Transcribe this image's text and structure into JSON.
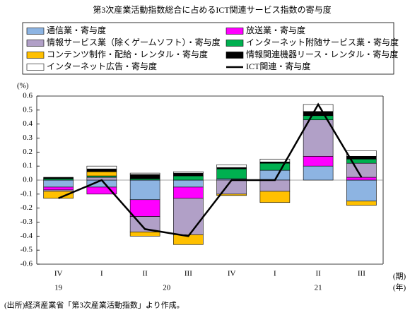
{
  "chart_data": {
    "type": "stacked-bar-line",
    "title": "第3次産業活動指数総合に占めるICT関連サービス指数の寄与度",
    "y_label": "(%)",
    "x_label": "(期)",
    "x_group_label": "(年)",
    "note": "(出所)経済産業省「第3次産業活動指数」より作成。",
    "categories": [
      "IV",
      "I",
      "II",
      "III",
      "IV",
      "I",
      "II",
      "III"
    ],
    "x_groups": [
      {
        "label": "19",
        "start": 0,
        "end": 0
      },
      {
        "label": "20",
        "start": 1,
        "end": 4
      },
      {
        "label": "21",
        "start": 5,
        "end": 7
      }
    ],
    "ylim": [
      -0.6,
      0.6
    ],
    "yticks": [
      0.6,
      0.5,
      0.4,
      0.3,
      0.2,
      0.1,
      {
        "value": 0,
        "label": "0.0"
      },
      -0.1,
      -0.2,
      -0.3,
      -0.4,
      -0.5,
      -0.6
    ],
    "series": [
      {
        "name": "通信業・寄与度",
        "color": "#8db4e2",
        "values": [
          -0.05,
          -0.05,
          -0.14,
          -0.05,
          0.01,
          0.07,
          0.1,
          -0.15
        ]
      },
      {
        "name": "放送業・寄与度",
        "color": "#ff00ff",
        "values": [
          -0.02,
          -0.05,
          -0.12,
          -0.08,
          0,
          0,
          0.07,
          0.02
        ]
      },
      {
        "name": "情報サービス業（除くゲームソフト）・寄与度",
        "color": "#b1a0c7",
        "values": [
          -0.01,
          0.02,
          -0.11,
          -0.26,
          -0.1,
          -0.08,
          0.26,
          0.1
        ]
      },
      {
        "name": "インターネット附随サービス業・寄与度",
        "color": "#00b050",
        "values": [
          0.01,
          0.01,
          0.01,
          0.03,
          0.07,
          0.05,
          0.03,
          0.03
        ]
      },
      {
        "name": "コンテンツ制作・配給・レンタル・寄与度",
        "color": "#ffc000",
        "values": [
          -0.05,
          0.03,
          -0.03,
          -0.07,
          -0.01,
          -0.08,
          0,
          -0.03
        ]
      },
      {
        "name": "情報関連機器リース・レンタル・寄与度",
        "color": "#000000",
        "values": [
          0.01,
          0.02,
          0.03,
          0.02,
          0.01,
          0.01,
          0.03,
          0.02
        ]
      },
      {
        "name": "インターネット広告・寄与度",
        "color": "#ffffff",
        "values": [
          0,
          0.02,
          0.01,
          0.01,
          0.02,
          0.02,
          0.05,
          0.04
        ]
      },
      {
        "name": "ICT関連・寄与度",
        "color": "#000000",
        "type": "line",
        "values": [
          -0.13,
          0,
          -0.35,
          -0.4,
          0,
          0,
          0.54,
          0.02
        ]
      }
    ]
  }
}
